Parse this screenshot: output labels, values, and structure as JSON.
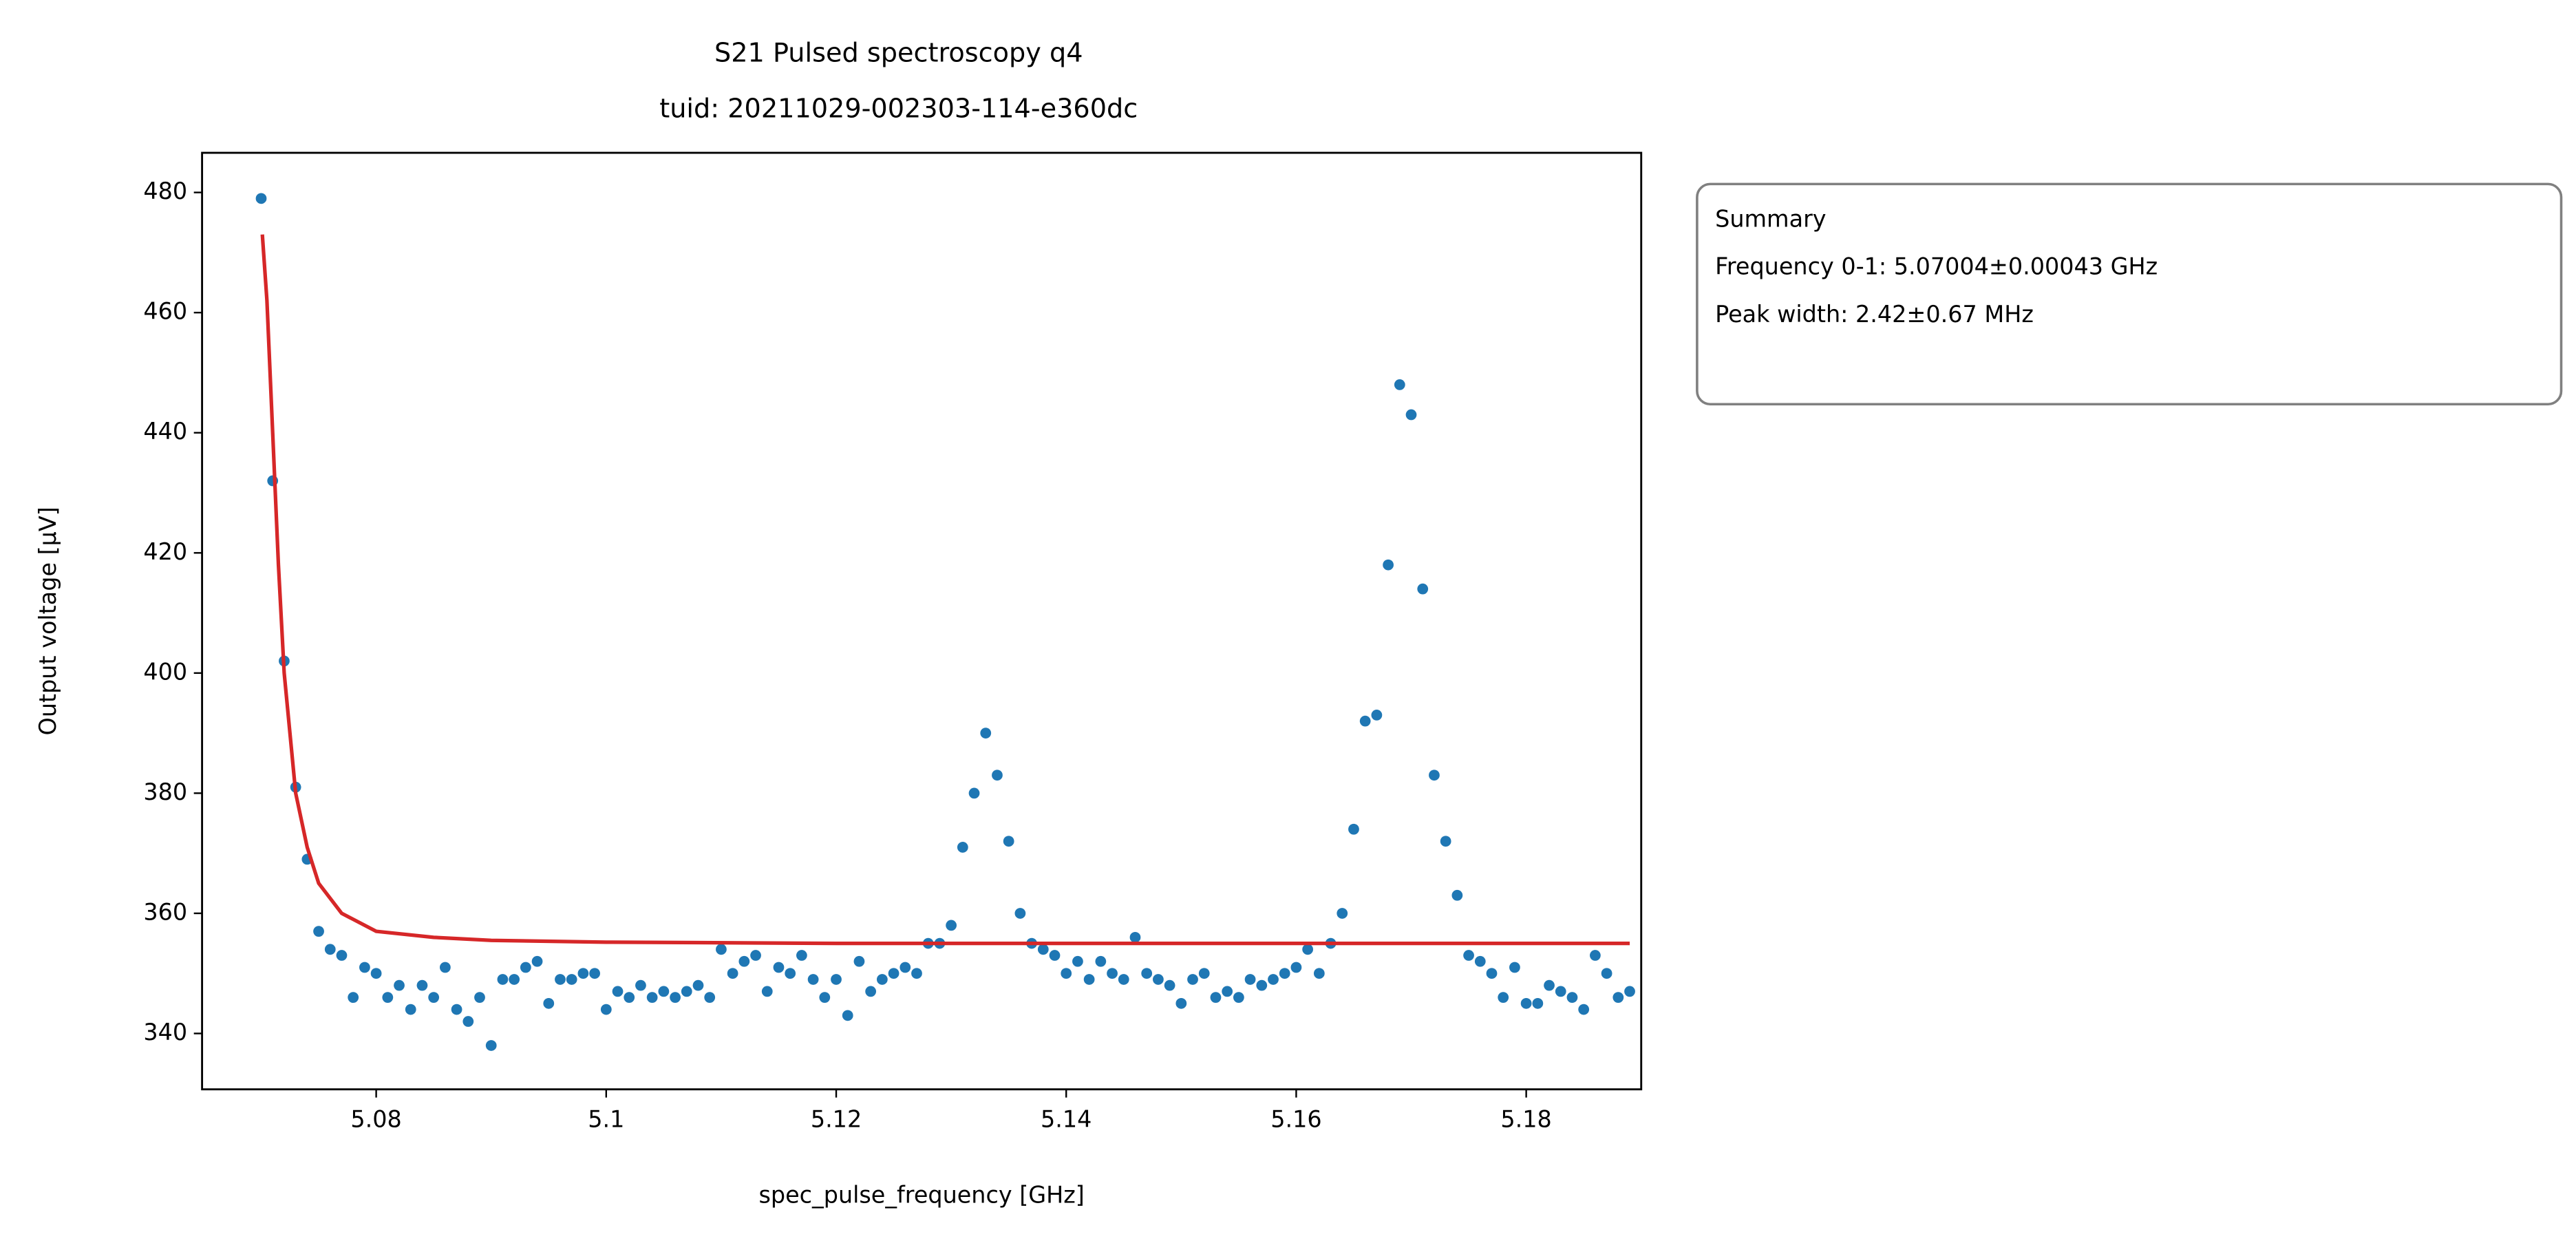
{
  "chart_data": {
    "type": "scatter",
    "title": [
      "S21 Pulsed spectroscopy q4",
      "tuid: 20211029-002303-114-e360dc"
    ],
    "xlabel": "spec_pulse_frequency [GHz]",
    "ylabel": "Output voltage [µV]",
    "xlim": [
      5.06486,
      5.19
    ],
    "ylim": [
      330.7,
      486.6
    ],
    "xticks": [
      5.08,
      5.1,
      5.12,
      5.14,
      5.16,
      5.18
    ],
    "yticks": [
      340,
      360,
      380,
      400,
      420,
      440,
      460,
      480
    ],
    "annotation": [
      "Summary",
      "Frequency 0-1: 5.07004±0.00043 GHz",
      "Peak width: 2.42±0.67 MHz"
    ],
    "series": [
      {
        "type": "scatter",
        "color": "#1f77b4",
        "x": [
          5.07,
          5.071,
          5.072,
          5.073,
          5.074,
          5.075,
          5.076,
          5.077,
          5.078,
          5.079,
          5.08,
          5.081,
          5.082,
          5.083,
          5.084,
          5.085,
          5.086,
          5.087,
          5.088,
          5.089,
          5.09,
          5.091,
          5.092,
          5.093,
          5.094,
          5.095,
          5.096,
          5.097,
          5.098,
          5.099,
          5.1,
          5.101,
          5.102,
          5.103,
          5.104,
          5.105,
          5.106,
          5.107,
          5.108,
          5.109,
          5.11,
          5.111,
          5.112,
          5.113,
          5.114,
          5.115,
          5.116,
          5.117,
          5.118,
          5.119,
          5.12,
          5.121,
          5.122,
          5.123,
          5.124,
          5.125,
          5.126,
          5.127,
          5.128,
          5.129,
          5.13,
          5.131,
          5.132,
          5.133,
          5.134,
          5.135,
          5.136,
          5.137,
          5.138,
          5.139,
          5.14,
          5.141,
          5.142,
          5.143,
          5.144,
          5.145,
          5.146,
          5.147,
          5.148,
          5.149,
          5.15,
          5.151,
          5.152,
          5.153,
          5.154,
          5.155,
          5.156,
          5.157,
          5.158,
          5.159,
          5.16,
          5.161,
          5.162,
          5.163,
          5.164,
          5.165,
          5.166,
          5.167,
          5.168,
          5.169,
          5.17,
          5.171,
          5.172,
          5.173,
          5.174,
          5.175,
          5.176,
          5.177,
          5.178,
          5.179,
          5.18,
          5.181,
          5.182,
          5.183,
          5.184,
          5.185,
          5.186,
          5.187,
          5.188,
          5.189
        ],
        "values": [
          479,
          432,
          402,
          381,
          369,
          357,
          354,
          353,
          346,
          351,
          350,
          346,
          348,
          344,
          348,
          346,
          351,
          344,
          342,
          346,
          338,
          349,
          349,
          351,
          352,
          345,
          349,
          349,
          350,
          350,
          344,
          347,
          346,
          348,
          346,
          347,
          346,
          347,
          348,
          346,
          354,
          350,
          352,
          353,
          347,
          351,
          350,
          353,
          349,
          346,
          349,
          343,
          352,
          347,
          349,
          350,
          351,
          350,
          355,
          355,
          358,
          371,
          380,
          390,
          383,
          372,
          360,
          355,
          354,
          353,
          350,
          352,
          349,
          352,
          350,
          349,
          356,
          350,
          349,
          348,
          345,
          349,
          350,
          346,
          347,
          346,
          349,
          348,
          349,
          350,
          351,
          354,
          350,
          355,
          360,
          374,
          392,
          393,
          418,
          448,
          443,
          414,
          383,
          372,
          363,
          353,
          352,
          350,
          346,
          351,
          345,
          345,
          348,
          347,
          346,
          344,
          353,
          350,
          346,
          347
        ]
      },
      {
        "type": "line",
        "color": "#d62728",
        "x": [
          5.0701,
          5.0705,
          5.071,
          5.0715,
          5.072,
          5.073,
          5.074,
          5.075,
          5.077,
          5.08,
          5.085,
          5.09,
          5.1,
          5.12,
          5.15,
          5.189
        ],
        "values": [
          473,
          462,
          440,
          418,
          400,
          380,
          371,
          365,
          360,
          357,
          356,
          355.5,
          355.2,
          355,
          355,
          355
        ]
      }
    ]
  }
}
